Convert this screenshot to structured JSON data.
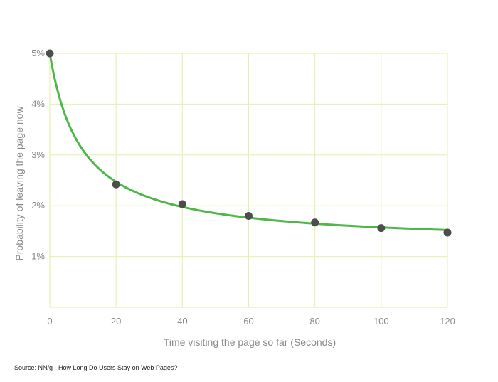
{
  "chart_data": {
    "type": "line",
    "xlabel": "Time visiting the page so far (Seconds)",
    "ylabel": "Probability of leaving the page now",
    "xlim": [
      0,
      120
    ],
    "ylim": [
      0,
      5
    ],
    "x_ticks": [
      0,
      20,
      40,
      60,
      80,
      100,
      120
    ],
    "y_ticks": [
      1,
      2,
      3,
      4,
      5
    ],
    "y_tick_suffix": "%",
    "grid": true,
    "series": [
      {
        "color": "#4db848",
        "marker_color": "#4d4d4d",
        "points": [
          {
            "x": 0,
            "y": 5.0
          },
          {
            "x": 20,
            "y": 2.42
          },
          {
            "x": 40,
            "y": 2.03
          },
          {
            "x": 60,
            "y": 1.8
          },
          {
            "x": 80,
            "y": 1.67
          },
          {
            "x": 100,
            "y": 1.56
          },
          {
            "x": 120,
            "y": 1.47
          }
        ]
      }
    ]
  },
  "grid_color": "#e6efae",
  "source_note": "Source: NN/g - How Long Do Users Stay on Web Pages?"
}
